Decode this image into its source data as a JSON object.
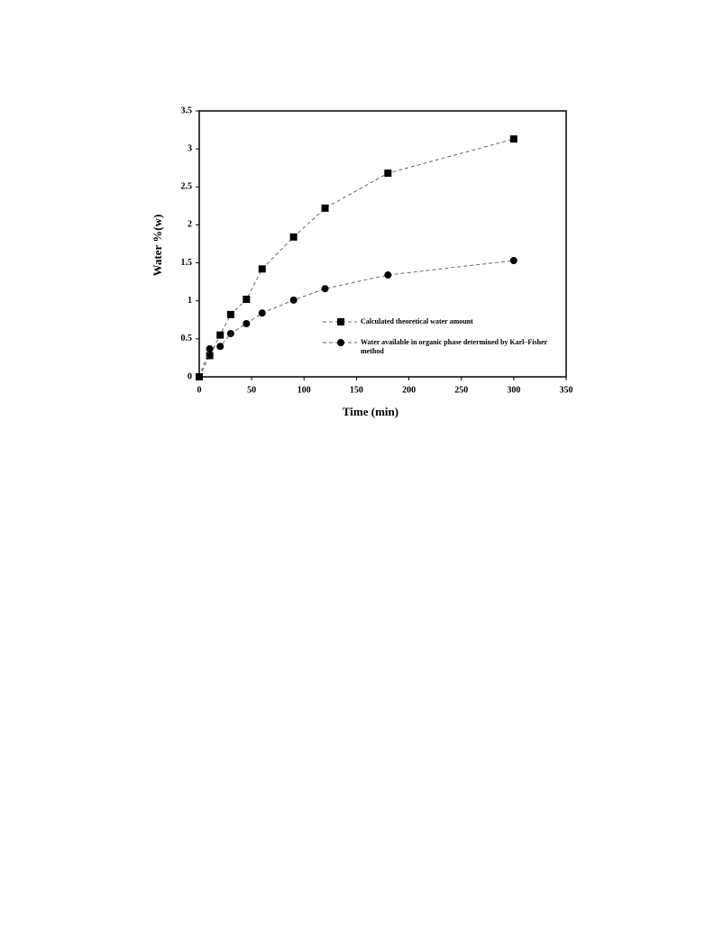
{
  "chart_data": {
    "type": "line",
    "xlabel": "Time (min)",
    "ylabel": "Water %(w)",
    "x": [
      0,
      10,
      20,
      30,
      45,
      60,
      90,
      120,
      180,
      300
    ],
    "series": [
      {
        "name": "Calculated theoretical water amount",
        "color": "#000000",
        "marker": "square",
        "values": [
          0,
          0.28,
          0.55,
          0.82,
          1.02,
          1.42,
          1.84,
          2.22,
          2.68,
          3.13
        ]
      },
      {
        "name": "Water available in organic phase determined by Karl–Fisher method",
        "color": "#000000",
        "marker": "circle",
        "values": [
          0,
          0.37,
          0.4,
          0.57,
          0.7,
          0.84,
          1.01,
          1.16,
          1.34,
          1.53
        ]
      }
    ],
    "xlim": [
      0,
      350
    ],
    "xticks": [
      0,
      50,
      100,
      150,
      200,
      250,
      300,
      350
    ],
    "ylim": [
      0,
      3.5
    ],
    "yticks": [
      0,
      0.5,
      1,
      1.5,
      2,
      2.5,
      3,
      3.5
    ],
    "grid": false,
    "legend": "lower right"
  }
}
